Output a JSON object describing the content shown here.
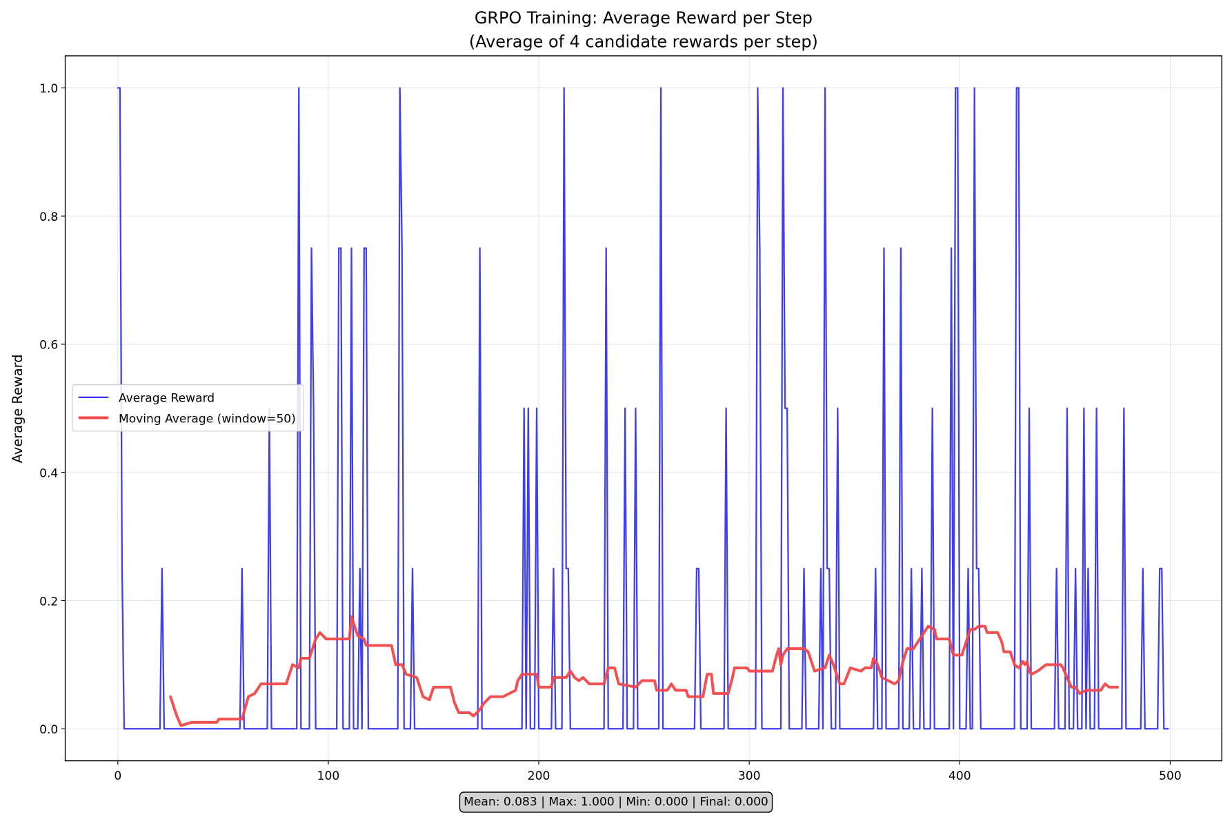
{
  "chart_data": {
    "type": "line",
    "title": "GRPO Training: Average Reward per Step",
    "subtitle": "(Average of 4 candidate rewards per step)",
    "y_label": "Average Reward",
    "stats_text": "Mean: 0.083 | Max: 1.000 | Min: 0.000 | Final: 0.000",
    "xlim": [
      -25,
      524.5
    ],
    "ylim": [
      -0.05,
      1.05
    ],
    "xticks": [
      0,
      100,
      200,
      300,
      400,
      500
    ],
    "yticks": [
      {
        "value": 0,
        "label": "0.0"
      },
      0.2,
      0.4,
      0.6,
      0.8,
      {
        "value": 1,
        "label": "1.0"
      }
    ],
    "grid": true,
    "legend": "center left",
    "series": [
      {
        "name": "Average Reward",
        "color": "#3535ee",
        "width": 2,
        "x": [
          0,
          1,
          2,
          3,
          20,
          21,
          22,
          58,
          59,
          60,
          71,
          72,
          73,
          85,
          86,
          87,
          91,
          92,
          93,
          94,
          104,
          105,
          106,
          107,
          110,
          111,
          112,
          114,
          115,
          116,
          117,
          118,
          119,
          133,
          134,
          135,
          136,
          139,
          140,
          141,
          171,
          172,
          173,
          192,
          193,
          194,
          195,
          196,
          198,
          199,
          200,
          206,
          207,
          208,
          211,
          212,
          213,
          214,
          215,
          231,
          232,
          233,
          240,
          241,
          242,
          245,
          246,
          247,
          257,
          258,
          259,
          274,
          275,
          276,
          277,
          288,
          289,
          290,
          303,
          304,
          305,
          306,
          315,
          316,
          317,
          318,
          319,
          325,
          326,
          327,
          333,
          334,
          335,
          336,
          337,
          338,
          339,
          341,
          342,
          343,
          359,
          360,
          361,
          363,
          364,
          365,
          371,
          372,
          373,
          376,
          377,
          378,
          381,
          382,
          383,
          386,
          387,
          388,
          395,
          396,
          397,
          398,
          399,
          400,
          403,
          404,
          405,
          406,
          407,
          408,
          409,
          410,
          426,
          427,
          428,
          429,
          432,
          433,
          434,
          445,
          446,
          447,
          450,
          451,
          452,
          454,
          455,
          456,
          458,
          459,
          460,
          461,
          462,
          464,
          465,
          466,
          477,
          478,
          479,
          486,
          487,
          488,
          494,
          495,
          496,
          497,
          499
        ],
        "values": [
          1,
          1,
          0.25,
          0,
          0,
          0.25,
          0,
          0,
          0.25,
          0,
          0,
          0.5,
          0,
          0,
          1,
          0,
          0,
          0.75,
          0.5,
          0,
          0,
          0.75,
          0.75,
          0,
          0,
          0.75,
          0,
          0,
          0.25,
          0,
          0.75,
          0.75,
          0,
          0,
          1,
          0.75,
          0,
          0,
          0.25,
          0,
          0,
          0.75,
          0,
          0,
          0.5,
          0,
          0.5,
          0,
          0,
          0.5,
          0,
          0,
          0.25,
          0,
          0,
          1,
          0.25,
          0.25,
          0,
          0,
          0.75,
          0,
          0,
          0.5,
          0,
          0,
          0.5,
          0,
          0,
          1,
          0,
          0,
          0.25,
          0.25,
          0,
          0,
          0.5,
          0,
          0,
          1,
          0.75,
          0,
          0,
          1,
          0.5,
          0.5,
          0,
          0,
          0.25,
          0,
          0,
          0.25,
          0,
          1,
          0.25,
          0.25,
          0,
          0,
          0.5,
          0,
          0,
          0.25,
          0,
          0,
          0.75,
          0,
          0,
          0.75,
          0,
          0,
          0.25,
          0,
          0,
          0.25,
          0,
          0,
          0.5,
          0,
          0,
          0.75,
          0,
          1,
          1,
          0,
          0,
          0.25,
          0,
          0,
          1,
          0.25,
          0.25,
          0,
          0,
          1,
          1,
          0,
          0,
          0.5,
          0,
          0,
          0.25,
          0,
          0,
          0.5,
          0,
          0,
          0.25,
          0,
          0,
          0.5,
          0,
          0.25,
          0,
          0,
          0.5,
          0,
          0,
          0.5,
          0,
          0,
          0.25,
          0,
          0,
          0.25,
          0.25,
          0,
          0
        ]
      },
      {
        "name": "Moving Average (window=50)",
        "color": "#f24848",
        "width": 3.5,
        "x": [
          25,
          28,
          30,
          35,
          47,
          48,
          59,
          62,
          65,
          68,
          80,
          83,
          86,
          87,
          91,
          94,
          96,
          99,
          110,
          111,
          114,
          117,
          118,
          130,
          132,
          135,
          137,
          142,
          145,
          148,
          150,
          158,
          160,
          162,
          167,
          169,
          172,
          174,
          177,
          183,
          186,
          189,
          190,
          192,
          199,
          200,
          206,
          207,
          213,
          215,
          217,
          219,
          221,
          224,
          231,
          233,
          236,
          238,
          246,
          249,
          255,
          256,
          261,
          263,
          265,
          270,
          271,
          278,
          280,
          282,
          283,
          290,
          292,
          293,
          299,
          300,
          311,
          313,
          314,
          315,
          316,
          318,
          326,
          328,
          331,
          336,
          338,
          340,
          343,
          345,
          348,
          353,
          355,
          358,
          359,
          361,
          363,
          366,
          369,
          371,
          373,
          375,
          378,
          381,
          383,
          385,
          388,
          389,
          395,
          397,
          401,
          403,
          405,
          407,
          409,
          412,
          413,
          418,
          420,
          421,
          424,
          426,
          428,
          430,
          431,
          432,
          433,
          434,
          437,
          441,
          448,
          449,
          451,
          453,
          455,
          457,
          460,
          467,
          469,
          471,
          475
        ],
        "values": [
          0.05,
          0.02,
          0.005,
          0.01,
          0.01,
          0.015,
          0.015,
          0.05,
          0.055,
          0.07,
          0.07,
          0.1,
          0.095,
          0.11,
          0.11,
          0.14,
          0.15,
          0.14,
          0.14,
          0.175,
          0.145,
          0.14,
          0.13,
          0.13,
          0.1,
          0.1,
          0.085,
          0.08,
          0.05,
          0.045,
          0.065,
          0.065,
          0.04,
          0.025,
          0.025,
          0.02,
          0.03,
          0.04,
          0.05,
          0.05,
          0.055,
          0.06,
          0.075,
          0.085,
          0.085,
          0.065,
          0.065,
          0.08,
          0.08,
          0.09,
          0.08,
          0.075,
          0.08,
          0.07,
          0.07,
          0.095,
          0.095,
          0.07,
          0.065,
          0.075,
          0.075,
          0.06,
          0.06,
          0.07,
          0.06,
          0.06,
          0.05,
          0.05,
          0.085,
          0.085,
          0.055,
          0.055,
          0.08,
          0.095,
          0.095,
          0.09,
          0.09,
          0.115,
          0.125,
          0.1,
          0.115,
          0.125,
          0.125,
          0.12,
          0.09,
          0.095,
          0.115,
          0.1,
          0.07,
          0.07,
          0.095,
          0.09,
          0.095,
          0.095,
          0.11,
          0.1,
          0.08,
          0.075,
          0.07,
          0.075,
          0.105,
          0.125,
          0.125,
          0.14,
          0.15,
          0.16,
          0.155,
          0.14,
          0.14,
          0.115,
          0.115,
          0.135,
          0.155,
          0.155,
          0.16,
          0.16,
          0.15,
          0.15,
          0.135,
          0.12,
          0.12,
          0.1,
          0.095,
          0.105,
          0.1,
          0.105,
          0.09,
          0.085,
          0.09,
          0.1,
          0.1,
          0.095,
          0.08,
          0.065,
          0.065,
          0.055,
          0.06,
          0.06,
          0.07,
          0.065,
          0.065
        ]
      }
    ]
  }
}
